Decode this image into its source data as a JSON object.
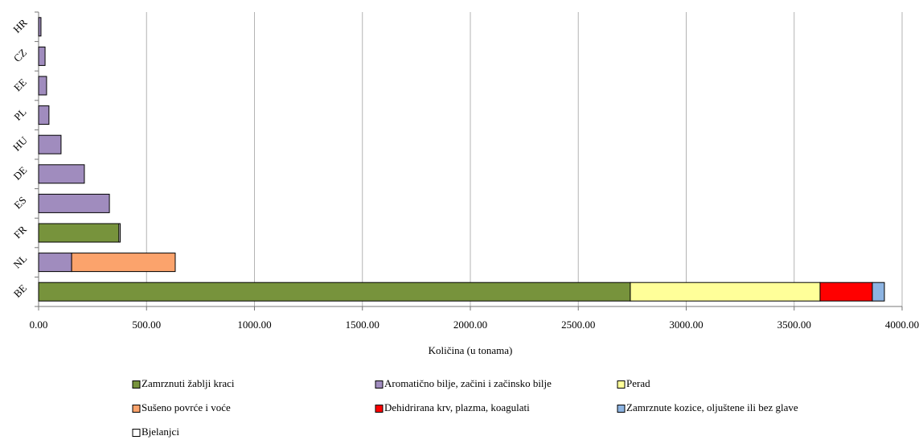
{
  "chart_data": {
    "type": "stacked-bar-horizontal",
    "xlabel": "Količina (u tonama)",
    "categories": [
      "BE",
      "NL",
      "FR",
      "ES",
      "DE",
      "HU",
      "PL",
      "EE",
      "CZ",
      "HR"
    ],
    "series": [
      {
        "name": "Zamrznuti žablji kraci",
        "color": "#77933c",
        "values": [
          2741,
          null,
          372,
          null,
          null,
          null,
          null,
          null,
          null,
          null
        ]
      },
      {
        "name": "Aromatično bilje, začini i začinsko bilje",
        "color": "#a08cbe",
        "values": [
          null,
          153,
          null,
          328,
          212,
          104,
          48,
          37,
          30,
          11
        ]
      },
      {
        "name": "Perad",
        "color": "#ffff99",
        "values": [
          879,
          null,
          null,
          null,
          null,
          null,
          null,
          null,
          null,
          null
        ]
      },
      {
        "name": "Sušeno povrće i voće",
        "color": "#fba36c",
        "values": [
          null,
          480,
          null,
          null,
          null,
          null,
          null,
          null,
          null,
          null
        ]
      },
      {
        "name": "Dehidrirana krv, plazma, koagulati",
        "color": "#ff0000",
        "values": [
          242,
          null,
          null,
          null,
          null,
          null,
          null,
          null,
          null,
          null
        ]
      },
      {
        "name": "Zamrznute kozice, oljuštene ili bez glave",
        "color": "#8db4e2",
        "values": [
          56,
          null,
          null,
          null,
          null,
          null,
          null,
          null,
          null,
          null
        ]
      },
      {
        "name": "Bjelanjci",
        "color": "#ffffff",
        "values": [
          null,
          null,
          6,
          null,
          null,
          null,
          null,
          null,
          null,
          null
        ]
      }
    ],
    "xlim": [
      0,
      4000
    ],
    "xticks": [
      {
        "value": 0,
        "label": "0.00"
      },
      {
        "value": 500,
        "label": "500.00"
      },
      {
        "value": 1000,
        "label": "1000.00"
      },
      {
        "value": 1500,
        "label": "1500.00"
      },
      {
        "value": 2000,
        "label": "2000.00"
      },
      {
        "value": 2500,
        "label": "2500.00"
      },
      {
        "value": 3000,
        "label": "3000.00"
      },
      {
        "value": 3500,
        "label": "3500.00"
      },
      {
        "value": 4000,
        "label": "4000.00"
      }
    ],
    "grid": true
  }
}
